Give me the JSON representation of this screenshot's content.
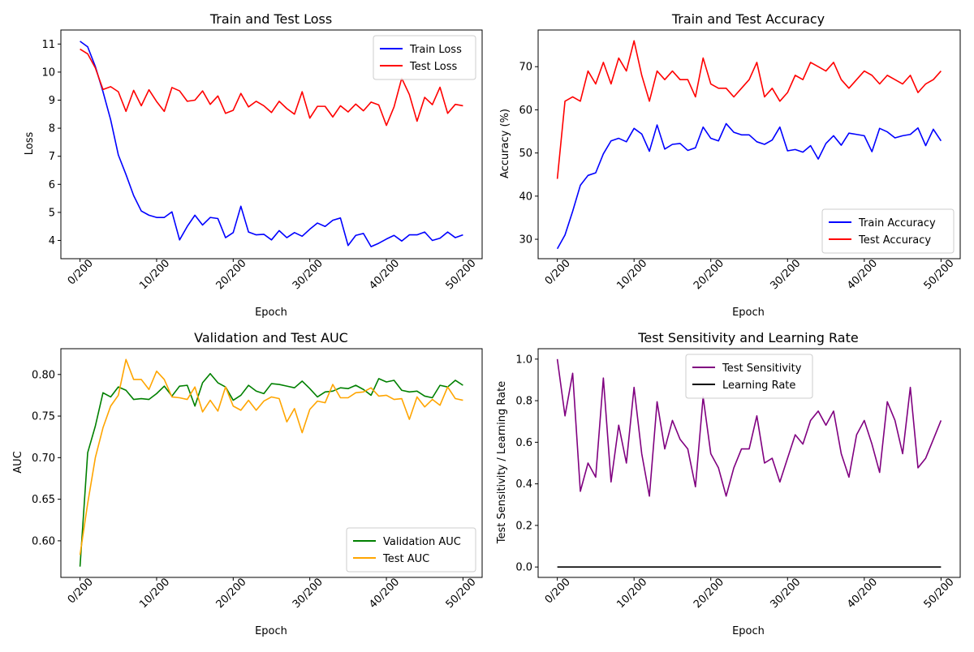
{
  "chart_data": [
    {
      "type": "line",
      "title": "Train and Test Loss",
      "xlabel": "Epoch",
      "ylabel": "Loss",
      "xlim": [
        -2.5,
        52.5
      ],
      "ylim": [
        3.35,
        11.5
      ],
      "xticks": [
        0,
        10,
        20,
        30,
        40,
        50
      ],
      "xtick_labels": [
        "0/200",
        "10/200",
        "20/200",
        "30/200",
        "40/200",
        "50/200"
      ],
      "yticks": [
        4,
        5,
        6,
        7,
        8,
        9,
        10,
        11
      ],
      "ytick_labels": [
        "4",
        "5",
        "6",
        "7",
        "8",
        "9",
        "10",
        "11"
      ],
      "legend": "upper-right",
      "grid": false,
      "series": [
        {
          "name": "Train Loss",
          "color": "#0000ff",
          "values": [
            11.1,
            10.9,
            10.2,
            9.3,
            8.3,
            7.05,
            6.35,
            5.6,
            5.05,
            4.9,
            4.82,
            4.82,
            5.02,
            4.02,
            4.5,
            4.9,
            4.55,
            4.82,
            4.78,
            4.1,
            4.28,
            5.22,
            4.3,
            4.2,
            4.22,
            4.02,
            4.35,
            4.1,
            4.28,
            4.15,
            4.4,
            4.62,
            4.5,
            4.72,
            4.8,
            3.82,
            4.18,
            4.25,
            3.78,
            3.9,
            4.05,
            4.18,
            3.98,
            4.2,
            4.2,
            4.3,
            4.0,
            4.08,
            4.3,
            4.1,
            4.2
          ]
        },
        {
          "name": "Test Loss",
          "color": "#ff0000",
          "values": [
            10.82,
            10.65,
            10.15,
            9.38,
            9.48,
            9.3,
            8.6,
            9.35,
            8.8,
            9.37,
            8.95,
            8.6,
            9.45,
            9.33,
            8.96,
            9.0,
            9.33,
            8.85,
            9.15,
            8.53,
            8.64,
            9.24,
            8.76,
            8.96,
            8.8,
            8.56,
            8.96,
            8.7,
            8.5,
            9.3,
            8.36,
            8.78,
            8.78,
            8.4,
            8.8,
            8.58,
            8.86,
            8.62,
            8.93,
            8.83,
            8.1,
            8.76,
            9.78,
            9.2,
            8.25,
            9.1,
            8.84,
            9.46,
            8.53,
            8.85,
            8.8
          ]
        }
      ]
    },
    {
      "type": "line",
      "title": "Train and Test Accuracy",
      "xlabel": "Epoch",
      "ylabel": "Accuracy (%)",
      "xlim": [
        -2.5,
        52.5
      ],
      "ylim": [
        25.5,
        78.5
      ],
      "xticks": [
        0,
        10,
        20,
        30,
        40,
        50
      ],
      "xtick_labels": [
        "0/200",
        "10/200",
        "20/200",
        "30/200",
        "40/200",
        "50/200"
      ],
      "yticks": [
        30,
        40,
        50,
        60,
        70
      ],
      "ytick_labels": [
        "30",
        "40",
        "50",
        "60",
        "70"
      ],
      "legend": "lower-right",
      "grid": false,
      "series": [
        {
          "name": "Train Accuracy",
          "color": "#0000ff",
          "values": [
            27.8,
            31,
            36.5,
            42.5,
            44.8,
            45.4,
            49.8,
            52.8,
            53.4,
            52.6,
            55.7,
            54.4,
            50.4,
            56.5,
            50.9,
            52.0,
            52.2,
            50.6,
            51.2,
            56.0,
            53.4,
            52.8,
            56.8,
            54.8,
            54.2,
            54.2,
            52.6,
            52.0,
            53.0,
            56.0,
            50.5,
            50.8,
            50.2,
            51.7,
            48.6,
            52.2,
            54.0,
            51.8,
            54.6,
            54.3,
            54.0,
            50.3,
            55.7,
            54.9,
            53.5,
            54.0,
            54.3,
            55.8,
            51.7,
            55.5,
            52.8
          ]
        },
        {
          "name": "Test Accuracy",
          "color": "#ff0000",
          "values": [
            44,
            62,
            63,
            62,
            69,
            66,
            71,
            66,
            72,
            69,
            76,
            68,
            62,
            69,
            67,
            69,
            67,
            67,
            63,
            72,
            66,
            65,
            65,
            63,
            65,
            67,
            71,
            63,
            65,
            62,
            64,
            68,
            67,
            71,
            70,
            69,
            71,
            67,
            65,
            67,
            69,
            68,
            66,
            68,
            67,
            66,
            68,
            64,
            66,
            67,
            69
          ]
        }
      ]
    },
    {
      "type": "line",
      "title": "Validation and Test AUC",
      "xlabel": "Epoch",
      "ylabel": "AUC",
      "xlim": [
        -2.5,
        52.5
      ],
      "ylim": [
        0.556,
        0.831
      ],
      "xticks": [
        0,
        10,
        20,
        30,
        40,
        50
      ],
      "xtick_labels": [
        "0/200",
        "10/200",
        "20/200",
        "30/200",
        "40/200",
        "50/200"
      ],
      "yticks": [
        0.6,
        0.65,
        0.7,
        0.75,
        0.8
      ],
      "ytick_labels": [
        "0.60",
        "0.65",
        "0.70",
        "0.75",
        "0.80"
      ],
      "legend": "lower-right",
      "grid": false,
      "series": [
        {
          "name": "Validation AUC",
          "color": "#008000",
          "values": [
            0.569,
            0.706,
            0.738,
            0.778,
            0.773,
            0.785,
            0.781,
            0.77,
            0.771,
            0.77,
            0.777,
            0.786,
            0.774,
            0.786,
            0.787,
            0.762,
            0.79,
            0.801,
            0.79,
            0.785,
            0.769,
            0.775,
            0.787,
            0.78,
            0.777,
            0.789,
            0.788,
            0.786,
            0.784,
            0.792,
            0.783,
            0.773,
            0.779,
            0.78,
            0.784,
            0.783,
            0.787,
            0.782,
            0.775,
            0.795,
            0.791,
            0.793,
            0.781,
            0.779,
            0.78,
            0.774,
            0.772,
            0.787,
            0.785,
            0.793,
            0.787
          ]
        },
        {
          "name": "Test AUC",
          "color": "#ffa500",
          "values": [
            0.583,
            0.645,
            0.7,
            0.736,
            0.762,
            0.775,
            0.818,
            0.794,
            0.794,
            0.782,
            0.804,
            0.794,
            0.773,
            0.772,
            0.77,
            0.785,
            0.755,
            0.769,
            0.756,
            0.785,
            0.762,
            0.757,
            0.769,
            0.757,
            0.768,
            0.773,
            0.771,
            0.743,
            0.759,
            0.73,
            0.758,
            0.768,
            0.766,
            0.788,
            0.772,
            0.772,
            0.778,
            0.779,
            0.784,
            0.774,
            0.775,
            0.77,
            0.771,
            0.746,
            0.773,
            0.761,
            0.77,
            0.763,
            0.785,
            0.771,
            0.769
          ]
        }
      ]
    },
    {
      "type": "line",
      "title": "Test Sensitivity and Learning Rate",
      "xlabel": "Epoch",
      "ylabel": "Test Sensitivity / Learning Rate",
      "xlim": [
        -2.5,
        52.5
      ],
      "ylim": [
        -0.05,
        1.05
      ],
      "xticks": [
        0,
        10,
        20,
        30,
        40,
        50
      ],
      "xtick_labels": [
        "0/200",
        "10/200",
        "20/200",
        "30/200",
        "40/200",
        "50/200"
      ],
      "yticks": [
        0.0,
        0.2,
        0.4,
        0.6,
        0.8,
        1.0
      ],
      "ytick_labels": [
        "0.0",
        "0.2",
        "0.4",
        "0.6",
        "0.8",
        "1.0"
      ],
      "legend": "upper-center",
      "grid": false,
      "series": [
        {
          "name": "Test Sensitivity",
          "color": "#800080",
          "values": [
            1.0,
            0.727,
            0.932,
            0.364,
            0.5,
            0.432,
            0.909,
            0.409,
            0.682,
            0.5,
            0.864,
            0.545,
            0.341,
            0.795,
            0.568,
            0.705,
            0.614,
            0.568,
            0.386,
            0.818,
            0.545,
            0.477,
            0.341,
            0.477,
            0.568,
            0.568,
            0.727,
            0.5,
            0.523,
            0.409,
            0.523,
            0.636,
            0.591,
            0.705,
            0.75,
            0.682,
            0.75,
            0.545,
            0.432,
            0.636,
            0.705,
            0.591,
            0.455,
            0.795,
            0.705,
            0.545,
            0.864,
            0.477,
            0.523,
            0.614,
            0.705
          ]
        },
        {
          "name": "Learning Rate",
          "color": "#000000",
          "values": [
            0.0001,
            0.0001,
            0.0001,
            0.0001,
            0.0001,
            0.0001,
            0.0001,
            0.0001,
            0.0001,
            0.0001,
            0.0001,
            0.0001,
            0.0001,
            0.0001,
            0.0001,
            0.0001,
            0.0001,
            0.0001,
            0.0001,
            0.0001,
            0.0001,
            0.0001,
            0.0001,
            0.0001,
            0.0001,
            0.0001,
            0.0001,
            0.0001,
            0.0001,
            0.0001,
            0.0001,
            0.0001,
            0.0001,
            0.0001,
            0.0001,
            0.0001,
            0.0001,
            0.0001,
            0.0001,
            0.0001,
            0.0001,
            0.0001,
            0.0001,
            0.0001,
            0.0001,
            0.0001,
            0.0001,
            0.0001,
            0.0001,
            0.0001,
            0.0001
          ]
        }
      ]
    }
  ]
}
